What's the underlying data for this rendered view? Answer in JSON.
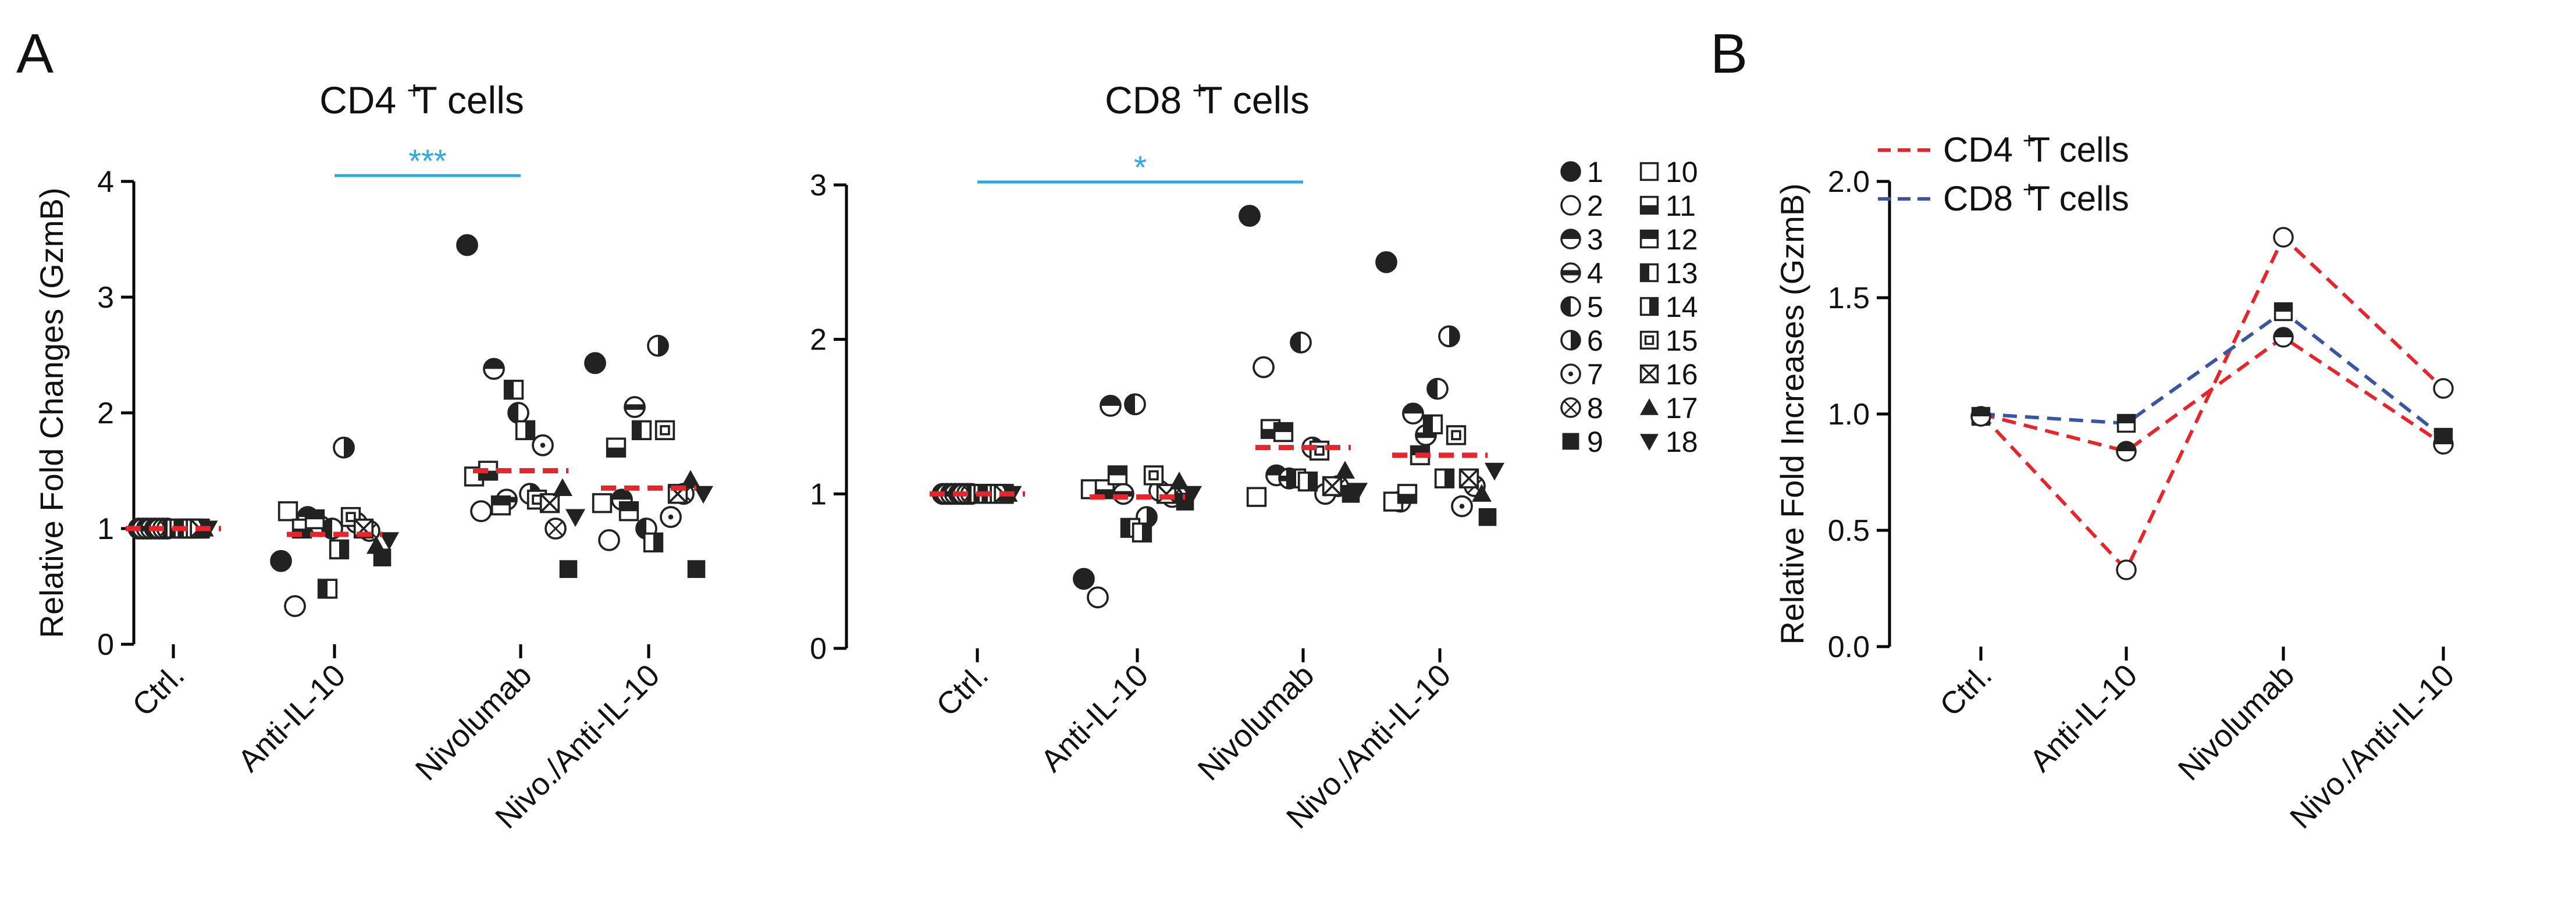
{
  "panels": [
    {
      "letter": "A"
    },
    {
      "letter": "B"
    }
  ],
  "legend_subjects": {
    "labels": [
      "1",
      "2",
      "3",
      "4",
      "5",
      "6",
      "7",
      "8",
      "9",
      "10",
      "11",
      "12",
      "13",
      "14",
      "15",
      "16",
      "17",
      "18"
    ],
    "markers": [
      "filled-circle",
      "open-circle",
      "circle-bottom-half-filled",
      "circle-horizontal-band",
      "circle-left-half-filled",
      "circle-right-half-filled",
      "circle-dot",
      "circle-cross",
      "filled-square",
      "open-square",
      "square-bottom-half-filled",
      "square-top-half-filled",
      "square-left-half-filled",
      "square-right-half-filled",
      "square-in-square",
      "square-cross",
      "filled-triangle-up",
      "filled-triangle-down"
    ]
  },
  "colors": {
    "cd4_line": "#e8252b",
    "cd8_line": "#3a55a4",
    "significance": "#29abe2",
    "mean_bar": "#e8252b"
  },
  "chart_data": [
    {
      "type": "scatter",
      "id": "cd4",
      "title": "CD4 +T cells",
      "title_main": "CD4",
      "title_sup": "+",
      "title_rest": "T cells",
      "ylabel": "Relative Fold Changes (GzmB)",
      "categories": [
        "Ctrl.",
        "Anti-IL-10",
        "Nivolumab",
        "Nivo./Anti-IL-10"
      ],
      "ylim": [
        0,
        4
      ],
      "yticks": [
        "0",
        "1",
        "2",
        "3",
        "4"
      ],
      "means": [
        1.0,
        0.95,
        1.5,
        1.35
      ],
      "significance": {
        "from": "Anti-IL-10",
        "to": "Nivolumab",
        "y": 4.0,
        "label": "***"
      },
      "points": [
        [
          1.0,
          1.0,
          1.0,
          1.0,
          1.0,
          1.0,
          1.0,
          1.0,
          1.0,
          1.0,
          1.0,
          1.0,
          1.0,
          1.0,
          1.0,
          1.0,
          1.0,
          1.0
        ],
        [
          0.72,
          0.33,
          1.1,
          1.02,
          1.0,
          1.7,
          1.05,
          0.98,
          0.75,
          1.15,
          1.0,
          1.08,
          0.48,
          0.82,
          1.1,
          1.0,
          0.85,
          0.9
        ],
        [
          3.45,
          1.15,
          2.38,
          1.25,
          2.0,
          1.3,
          1.72,
          1.0,
          0.65,
          1.45,
          1.5,
          1.2,
          2.2,
          1.85,
          1.25,
          1.22,
          1.35,
          1.1
        ],
        [
          2.43,
          0.9,
          1.25,
          2.05,
          1.0,
          2.58,
          1.1,
          1.3,
          0.65,
          1.22,
          1.7,
          1.15,
          1.85,
          0.88,
          1.85,
          1.3,
          1.42,
          1.3
        ]
      ]
    },
    {
      "type": "scatter",
      "id": "cd8",
      "title": "CD8 +T cells",
      "title_main": "CD8",
      "title_sup": "+",
      "title_rest": "T cells",
      "ylabel": "",
      "categories": [
        "Ctrl.",
        "Anti-IL-10",
        "Nivolumab",
        "Nivo./Anti-IL-10"
      ],
      "ylim": [
        0,
        3
      ],
      "yticks": [
        "0",
        "1",
        "2",
        "3"
      ],
      "means": [
        1.0,
        0.98,
        1.3,
        1.25
      ],
      "significance": {
        "from": "Ctrl.",
        "to": "Nivolumab",
        "y": 3.0,
        "label": "*"
      },
      "points": [
        [
          1.0,
          1.0,
          1.0,
          1.0,
          1.0,
          1.0,
          1.0,
          1.0,
          1.0,
          1.0,
          1.0,
          1.0,
          1.0,
          1.0,
          1.0,
          1.0,
          1.0,
          1.0
        ],
        [
          0.45,
          0.33,
          1.57,
          1.0,
          1.58,
          0.85,
          1.02,
          0.98,
          0.95,
          1.03,
          1.03,
          1.12,
          0.78,
          0.75,
          1.12,
          1.0,
          1.08,
          1.0
        ],
        [
          2.8,
          1.82,
          1.12,
          1.1,
          1.98,
          1.3,
          1.0,
          1.05,
          1.0,
          0.98,
          1.42,
          1.4,
          1.1,
          1.08,
          1.28,
          1.05,
          1.15,
          1.02
        ],
        [
          2.5,
          0.95,
          1.52,
          1.38,
          1.68,
          2.02,
          0.92,
          1.05,
          0.85,
          0.95,
          1.0,
          1.25,
          1.45,
          1.1,
          1.38,
          1.1,
          1.0,
          1.15
        ]
      ]
    },
    {
      "type": "line",
      "id": "fold",
      "title": "",
      "ylabel": "Relative Fold Increases (GzmB)",
      "categories": [
        "Ctrl.",
        "Anti-IL-10",
        "Nivolumab",
        "Nivo./Anti-IL-10"
      ],
      "ylim": [
        0,
        2.0
      ],
      "yticks": [
        "0.0",
        "0.5",
        "1.0",
        "1.5",
        "2.0"
      ],
      "legend_position": "top-left",
      "series": [
        {
          "name": "CD4 +T cells",
          "name_main": "CD4",
          "name_sup": "+",
          "name_rest": "T cells",
          "color_key": "cd4_line",
          "lines": [
            [
              1.0,
              0.33,
              1.76,
              1.11
            ],
            [
              1.0,
              0.84,
              1.33,
              0.87
            ]
          ]
        },
        {
          "name": "CD8 +T cells",
          "name_main": "CD8",
          "name_sup": "+",
          "name_rest": "T cells",
          "color_key": "cd8_line",
          "lines": [
            [
              1.0,
              0.96,
              1.44,
              0.9
            ]
          ]
        }
      ],
      "markers": [
        {
          "cat": 0,
          "value": 0.99,
          "marker": "open-square"
        },
        {
          "cat": 0,
          "value": 0.99,
          "marker": "circle-bottom-half-filled"
        },
        {
          "cat": 1,
          "value": 0.33,
          "marker": "open-circle"
        },
        {
          "cat": 1,
          "value": 0.84,
          "marker": "circle-bottom-half-filled"
        },
        {
          "cat": 1,
          "value": 0.96,
          "marker": "square-top-half-filled"
        },
        {
          "cat": 2,
          "value": 1.76,
          "marker": "open-circle"
        },
        {
          "cat": 2,
          "value": 1.44,
          "marker": "square-top-half-filled"
        },
        {
          "cat": 2,
          "value": 1.33,
          "marker": "circle-bottom-half-filled"
        },
        {
          "cat": 3,
          "value": 1.11,
          "marker": "open-circle"
        },
        {
          "cat": 3,
          "value": 0.9,
          "marker": "square-top-half-filled"
        },
        {
          "cat": 3,
          "value": 0.87,
          "marker": "circle-bottom-half-filled"
        }
      ]
    }
  ]
}
